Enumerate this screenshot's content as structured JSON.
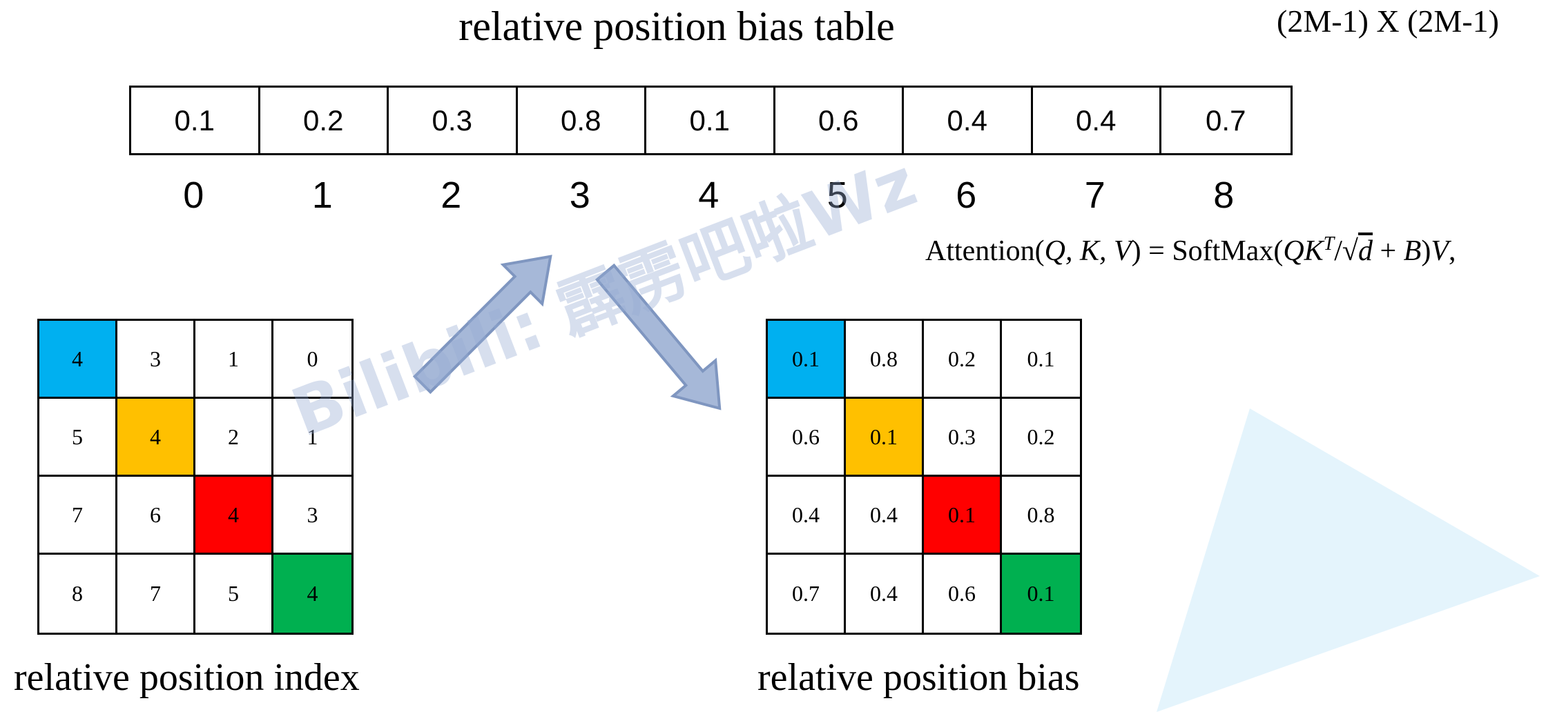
{
  "title": "relative position bias table",
  "dims": "(2M-1) X (2M-1)",
  "table": {
    "values": [
      "0.1",
      "0.2",
      "0.3",
      "0.8",
      "0.1",
      "0.6",
      "0.4",
      "0.4",
      "0.7"
    ],
    "indices": [
      "0",
      "1",
      "2",
      "3",
      "4",
      "5",
      "6",
      "7",
      "8"
    ]
  },
  "formula": {
    "lhs": "Attention(",
    "args": "Q, K, V",
    "eq": ") = SoftMax(",
    "qk": "QK",
    "sup": "T",
    "div": "/√",
    "d": "d",
    "plus": " + ",
    "b": "B",
    "tail": ")",
    "v": "V",
    "comma": ","
  },
  "index_grid": {
    "caption": "relative position index",
    "cells": [
      [
        "4",
        "3",
        "1",
        "0"
      ],
      [
        "5",
        "4",
        "2",
        "1"
      ],
      [
        "7",
        "6",
        "4",
        "3"
      ],
      [
        "8",
        "7",
        "5",
        "4"
      ]
    ]
  },
  "bias_grid": {
    "caption": "relative position bias",
    "cells": [
      [
        "0.1",
        "0.8",
        "0.2",
        "0.1"
      ],
      [
        "0.6",
        "0.1",
        "0.3",
        "0.2"
      ],
      [
        "0.4",
        "0.4",
        "0.1",
        "0.8"
      ],
      [
        "0.7",
        "0.4",
        "0.6",
        "0.1"
      ]
    ]
  },
  "diagonal_colors": [
    "#00b0f0",
    "#ffc000",
    "#ff0000",
    "#00b050"
  ],
  "arrow_color": "#a6b8d8",
  "watermark": "Bilibili: 霹雳吧啦Wz"
}
